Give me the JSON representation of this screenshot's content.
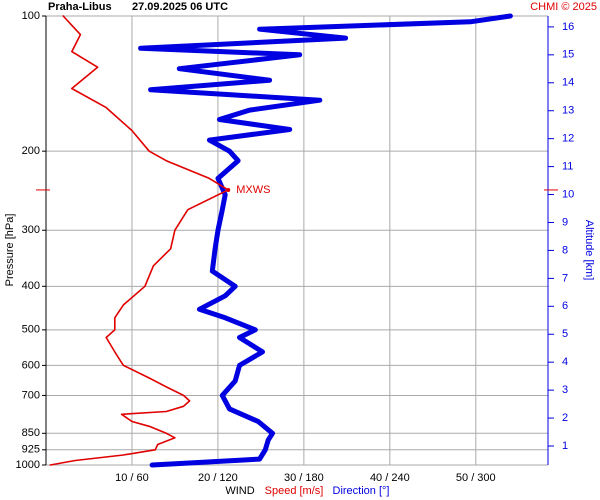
{
  "chart_data": {
    "type": "line",
    "title": {
      "station": "Praha-Libus",
      "time": "27.09.2025 06 UTC"
    },
    "credit": "CHMI © 2025",
    "y_label": "Pressure [hPa]",
    "y2_label": "Altitude [km]",
    "x_label": "WIND",
    "y_log": true,
    "grid": true,
    "ylim": [
      1000,
      100
    ],
    "yticks": [
      100,
      200,
      300,
      400,
      500,
      600,
      700,
      850,
      925,
      1000
    ],
    "y2lim": [
      0.32,
      16.39
    ],
    "y2ticks": [
      1,
      2,
      3,
      4,
      5,
      6,
      7,
      8,
      9,
      10,
      11,
      12,
      13,
      14,
      15,
      16
    ],
    "xlim": [
      0,
      58.4
    ],
    "x2lim": [
      0,
      350.2
    ],
    "xticks": [
      {
        "value": 10,
        "label": "10 / 60"
      },
      {
        "value": 20,
        "label": "20 / 120"
      },
      {
        "value": 30,
        "label": "30 / 180"
      },
      {
        "value": 40,
        "label": "40 / 240"
      },
      {
        "value": 50,
        "label": "50 / 300"
      }
    ],
    "max_wind": {
      "label": "MXWS",
      "pressure": 244,
      "speed": 21.2
    },
    "series": [
      {
        "name": "Speed [m/s]",
        "color": "#e00000",
        "axis": "x",
        "pressure": [
          1000,
          977,
          950,
          925,
          900,
          870,
          850,
          820,
          800,
          771,
          760,
          740,
          720,
          700,
          670,
          640,
          600,
          560,
          520,
          500,
          470,
          440,
          400,
          360,
          330,
          300,
          270,
          244,
          230,
          210,
          200,
          180,
          160,
          145,
          130,
          120,
          110,
          100
        ],
        "values": [
          0.5,
          3.4,
          9,
          12.7,
          13,
          15,
          14,
          12,
          10,
          8.8,
          14,
          16,
          16.7,
          16,
          14,
          12,
          9,
          8,
          7,
          8,
          8,
          9,
          11.5,
          12.5,
          14.5,
          15,
          16.5,
          21.2,
          19,
          14,
          12,
          10,
          7,
          3,
          6,
          3,
          4,
          2
        ]
      },
      {
        "name": "Direction [°]",
        "color": "#0000e0",
        "axis": "x2",
        "pressure": [
          1000,
          990,
          970,
          925,
          880,
          850,
          800,
          750,
          700,
          650,
          600,
          560,
          520,
          500,
          470,
          450,
          420,
          400,
          370,
          330,
          300,
          270,
          250,
          230,
          210,
          200,
          189,
          179,
          170,
          162,
          154,
          146,
          139,
          131,
          122,
          118,
          112,
          107,
          103,
          100
        ],
        "values": [
          74,
          100,
          149,
          153,
          155,
          158,
          148,
          128,
          123,
          132,
          135,
          151,
          135,
          146,
          125,
          107,
          125,
          132,
          116,
          118,
          120,
          123,
          125,
          120,
          134,
          128,
          114,
          170,
          121,
          142,
          191,
          73,
          156,
          93,
          177,
          66,
          209,
          149,
          296,
          324
        ]
      }
    ]
  }
}
